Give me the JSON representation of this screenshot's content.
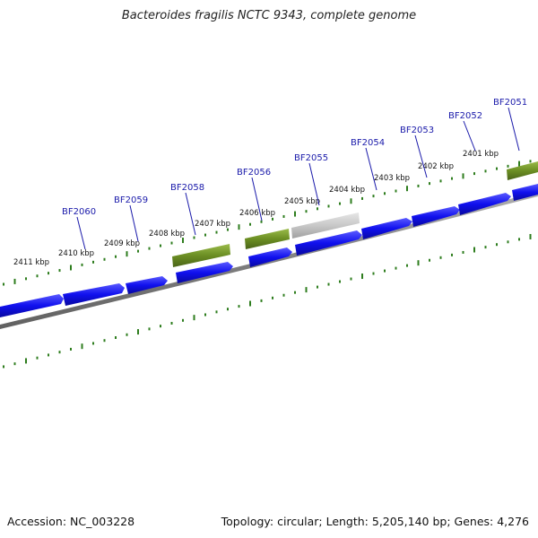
{
  "title": "Bacteroides fragilis NCTC 9343, complete genome",
  "footer": {
    "accession": "Accession: NC_003228",
    "summary": "Topology: circular; Length: 5,205,140 bp; Genes: 4,276"
  },
  "colors": {
    "forward_gene": "#1010ee",
    "rna_gene": "#6b8e23",
    "pseudo_gene": "#c8c8c8",
    "backbone": "#808080",
    "gc_ticks": "#2e7d1e",
    "gene_label": "#1a1aaa"
  },
  "kbp_labels": [
    "2411 kbp",
    "2410 kbp",
    "2409 kbp",
    "2408 kbp",
    "2407 kbp",
    "2406 kbp",
    "2405 kbp",
    "2404 kbp",
    "2403 kbp",
    "2402 kbp",
    "2401 kbp"
  ],
  "gene_labels": [
    "BF2060",
    "BF2059",
    "BF2058",
    "BF2056",
    "BF2055",
    "BF2054",
    "BF2053",
    "BF2052",
    "BF2051"
  ]
}
